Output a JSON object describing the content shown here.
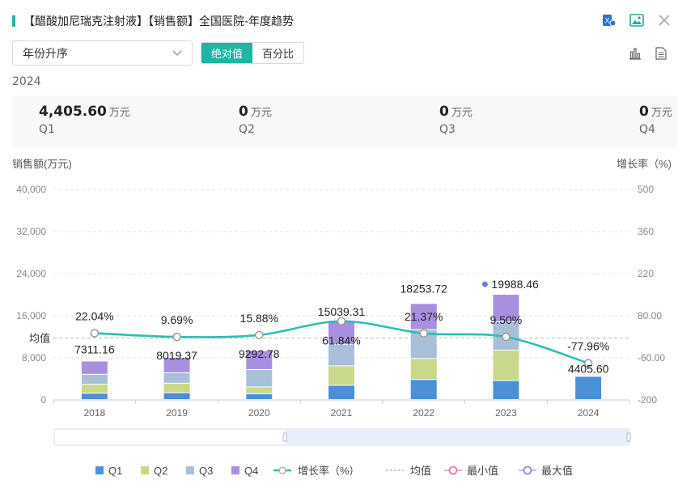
{
  "header": {
    "title": "【醋酸加尼瑞克注射液】【销售额】全国医院-年度趋势"
  },
  "icons": {
    "excel": "excel-export-icon",
    "image": "image-icon",
    "close": "close-icon",
    "bar_view": "bar-chart-icon",
    "table_view": "table-icon"
  },
  "controls": {
    "sort_select": "年份升序",
    "toggle_absolute": "绝对值",
    "toggle_percent": "百分比"
  },
  "summary": {
    "year": "2024",
    "items": [
      {
        "value": "4,405.60",
        "unit": "万元",
        "label": "Q1"
      },
      {
        "value": "0",
        "unit": "万元",
        "label": "Q2"
      },
      {
        "value": "0",
        "unit": "万元",
        "label": "Q3"
      },
      {
        "value": "0",
        "unit": "万元",
        "label": "Q4"
      }
    ]
  },
  "chart_data": {
    "type": "bar",
    "stacked": true,
    "categories": [
      "2018",
      "2019",
      "2020",
      "2021",
      "2022",
      "2023",
      "2024"
    ],
    "ylabel_left": "销售额(万元)",
    "ylabel_right": "增长率（%)",
    "ylim_left": [
      0,
      40000
    ],
    "yticks_left": [
      "0",
      "8,000",
      "16,000",
      "24,000",
      "32,000",
      "40,000"
    ],
    "ylim_right": [
      -200,
      500
    ],
    "yticks_right": [
      "-200",
      "-60.00",
      "80.00",
      "220",
      "360",
      "500"
    ],
    "series": [
      {
        "name": "Q1",
        "color": "#4a90d9",
        "values": [
          1200,
          1300,
          1100,
          2700,
          3800,
          3600,
          4405.6
        ]
      },
      {
        "name": "Q2",
        "color": "#c9d98a",
        "values": [
          1700,
          1800,
          1300,
          3700,
          4000,
          5800,
          0
        ]
      },
      {
        "name": "Q3",
        "color": "#a9bfd9",
        "values": [
          1900,
          2000,
          3300,
          4100,
          5500,
          5400,
          0
        ]
      },
      {
        "name": "Q4",
        "color": "#a88fe0",
        "values": [
          2511.16,
          2919.37,
          3592.78,
          4539.31,
          4953.72,
          5188.46,
          0
        ]
      }
    ],
    "totals": [
      "7311.16",
      "8019.37",
      "9292.78",
      "15039.31",
      "18253.72",
      "19988.46",
      "4405.60"
    ],
    "growth": {
      "name": "增长率（%)",
      "color": "#2bbfb3",
      "values": [
        22.04,
        9.69,
        15.88,
        61.84,
        21.37,
        9.5,
        -77.96
      ],
      "labels": [
        "22.04%",
        "9.69%",
        "15.88%",
        "61.84%",
        "21.37%",
        "9.50%",
        "-77.96%"
      ]
    },
    "average": {
      "label": "均值",
      "value": 11758.63
    },
    "max_marker": {
      "year": "2023",
      "value": 19988.46
    },
    "x_zoom": {
      "start_pct": 0,
      "end_pct": 100
    },
    "legend": [
      "Q1",
      "Q2",
      "Q3",
      "Q4",
      "增长率（%）",
      "均值",
      "最小值",
      "最大值"
    ]
  }
}
